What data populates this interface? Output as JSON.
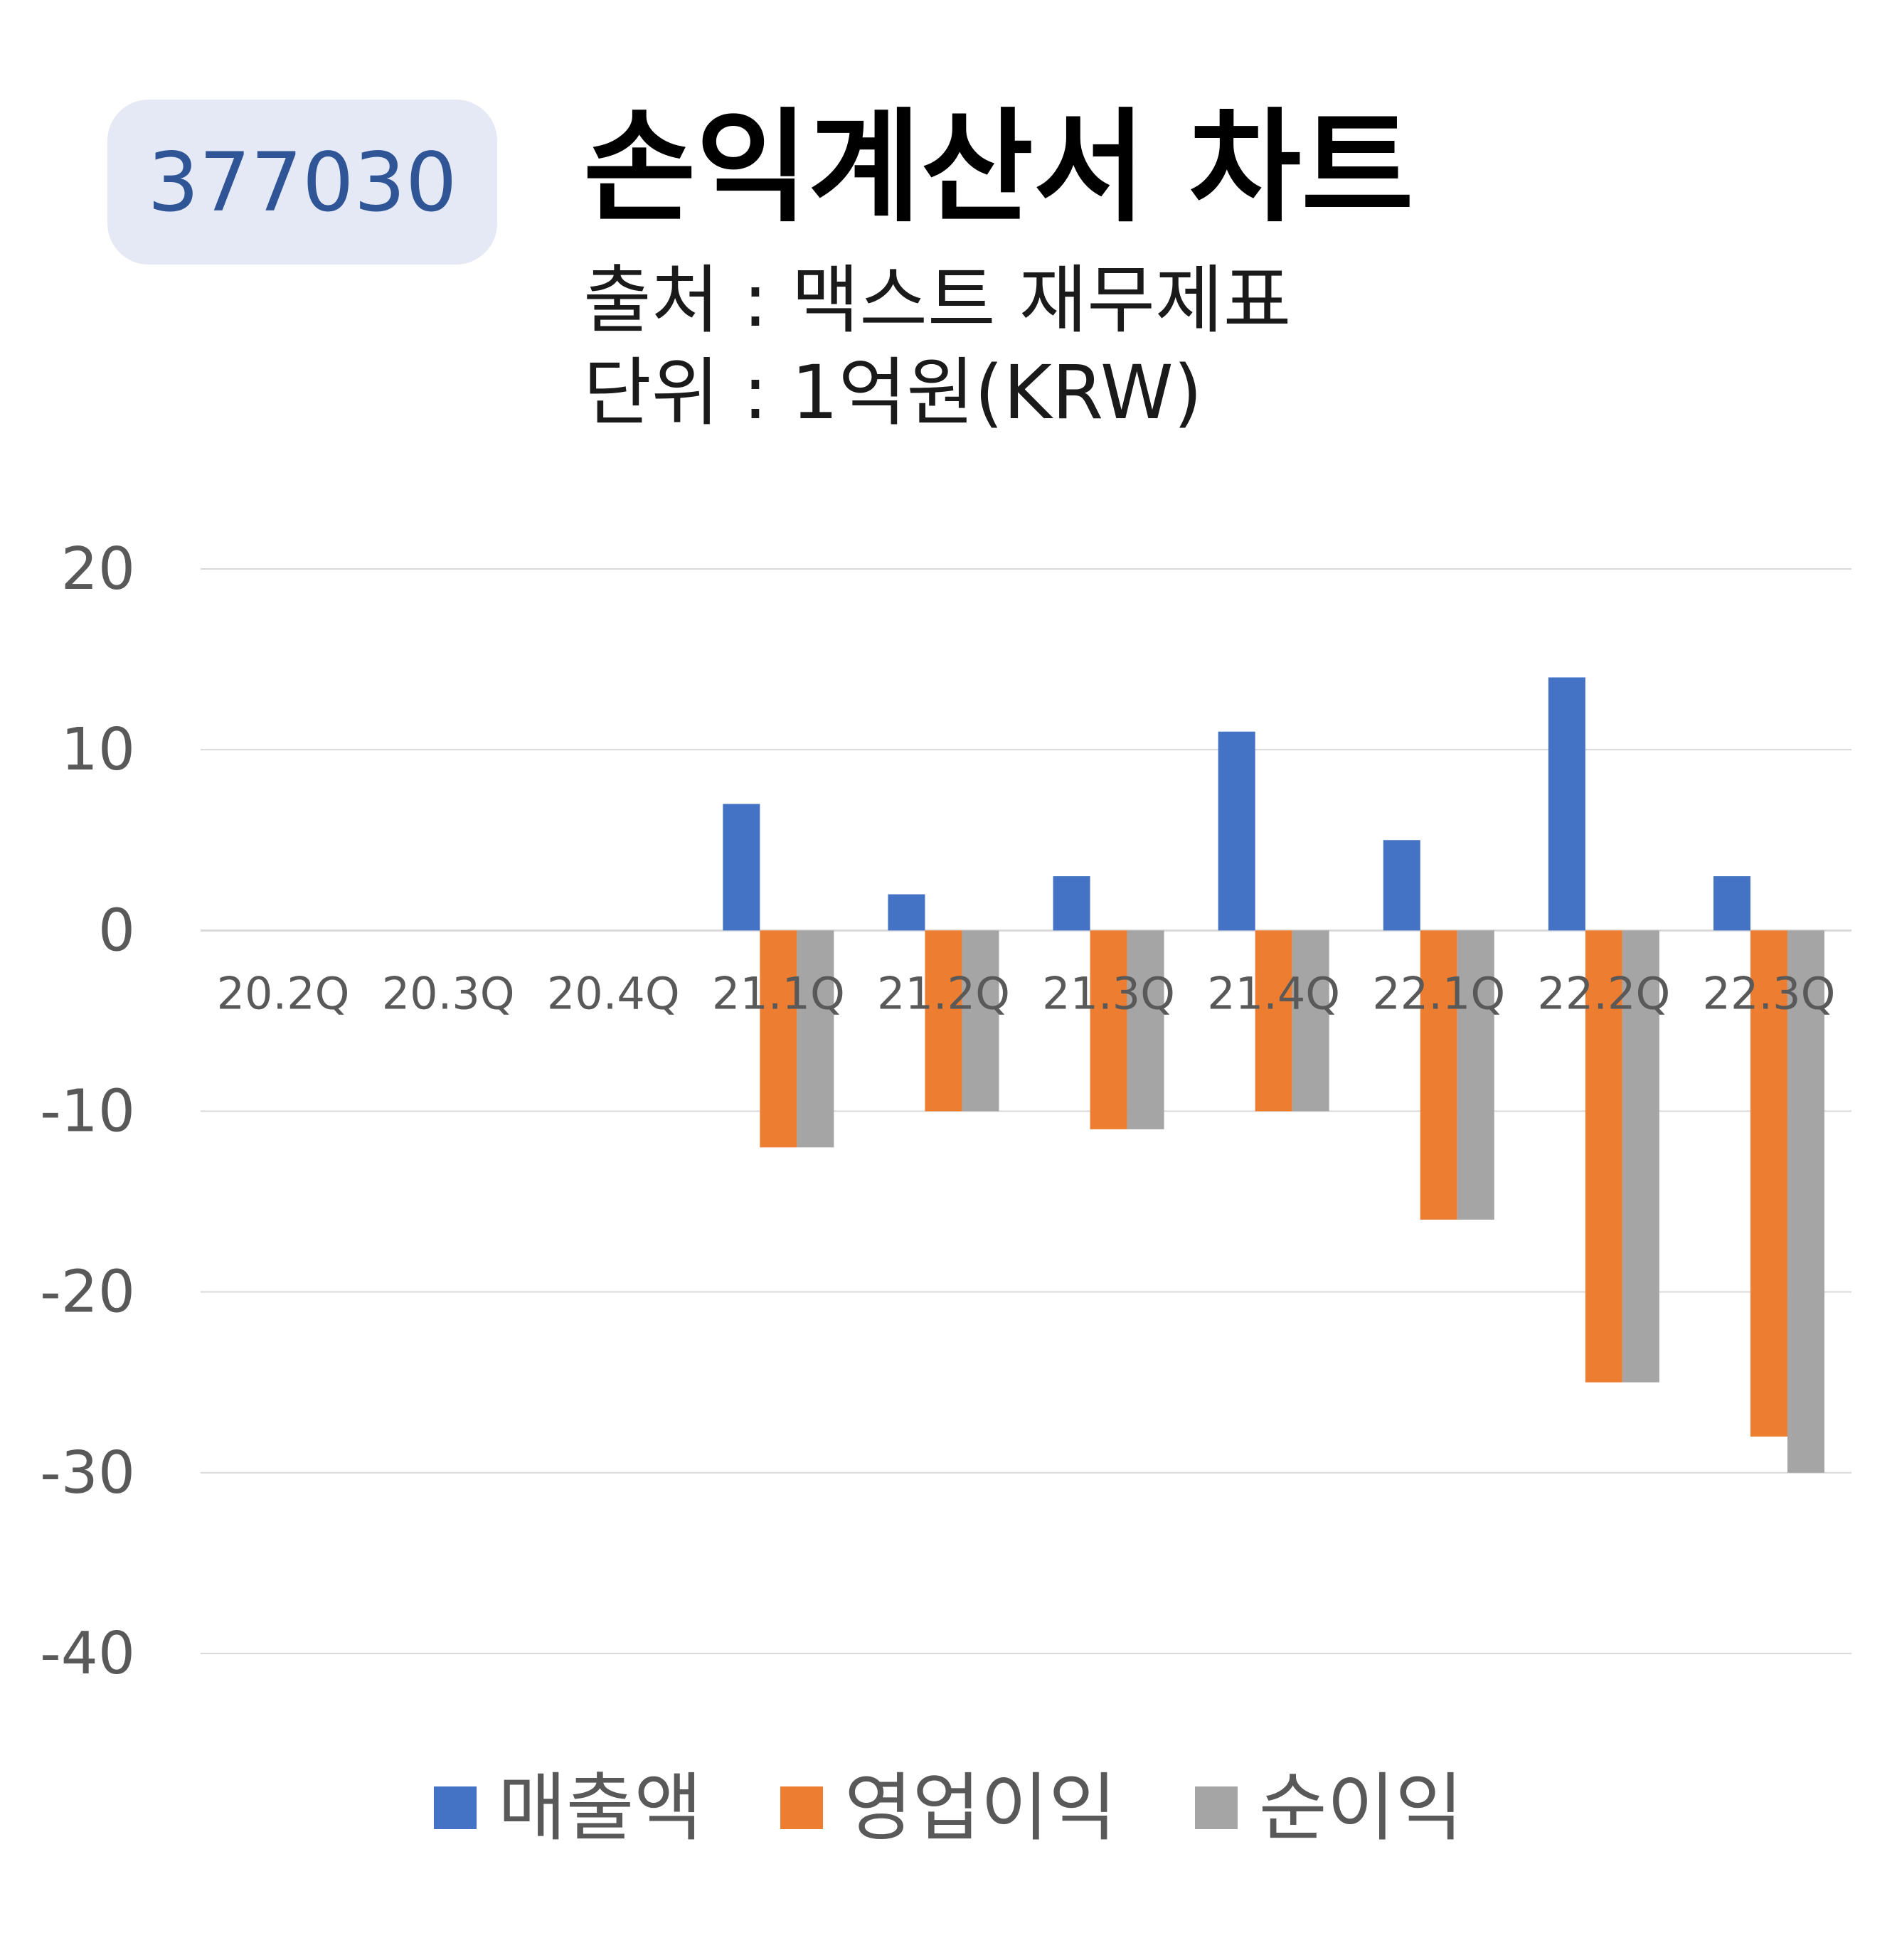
{
  "badge": {
    "ticker": "377030"
  },
  "header": {
    "title": "손익계산서 차트",
    "source": "출처 : 맥스트 재무제표",
    "unit": "단위 : 1억원(KRW)"
  },
  "colors": {
    "revenue": "#4472c4",
    "operating_income": "#ed7d31",
    "net_income": "#a5a5a5",
    "grid": "#d9d9d9",
    "axis_text": "#595959"
  },
  "chart_data": {
    "type": "bar",
    "title": "",
    "xlabel": "",
    "ylabel": "",
    "ylim": [
      -40,
      20
    ],
    "yticks": [
      20,
      10,
      0,
      -10,
      -20,
      -30,
      -40
    ],
    "grid": true,
    "legend": "bottom",
    "categories": [
      "20.2Q",
      "20.3Q",
      "20.4Q",
      "21.1Q",
      "21.2Q",
      "21.3Q",
      "21.4Q",
      "22.1Q",
      "22.2Q",
      "22.3Q"
    ],
    "series": [
      {
        "name": "매출액",
        "values": [
          0,
          0,
          0,
          7,
          2,
          3,
          11,
          5,
          14,
          3
        ]
      },
      {
        "name": "영업이익",
        "values": [
          0,
          0,
          0,
          -12,
          -10,
          -11,
          -10,
          -16,
          -25,
          -28
        ]
      },
      {
        "name": "순이익",
        "values": [
          0,
          0,
          0,
          -12,
          -10,
          -11,
          -10,
          -16,
          -25,
          -30
        ]
      }
    ]
  }
}
